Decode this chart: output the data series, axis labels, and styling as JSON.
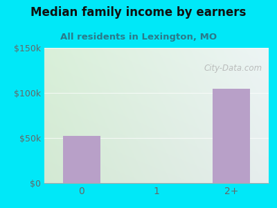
{
  "title": "Median family income by earners",
  "subtitle": "All residents in Lexington, MO",
  "categories": [
    "0",
    "1",
    "2+"
  ],
  "values": [
    52000,
    0,
    105000
  ],
  "bar_color": "#b8a0c8",
  "ylim": [
    0,
    150000
  ],
  "yticks": [
    0,
    50000,
    100000,
    150000
  ],
  "ytick_labels": [
    "$0",
    "$50k",
    "$100k",
    "$150k"
  ],
  "background_outer": "#00e8f8",
  "title_color": "#111111",
  "subtitle_color": "#2a7a8a",
  "tick_color": "#666666",
  "watermark": "City-Data.com",
  "title_fontsize": 12,
  "subtitle_fontsize": 9.5,
  "grad_topleft": "#d8efd8",
  "grad_topright": "#e8f0f0",
  "grad_bottomleft": "#d8f0d8",
  "grad_bottomright": "#f0f8f8"
}
